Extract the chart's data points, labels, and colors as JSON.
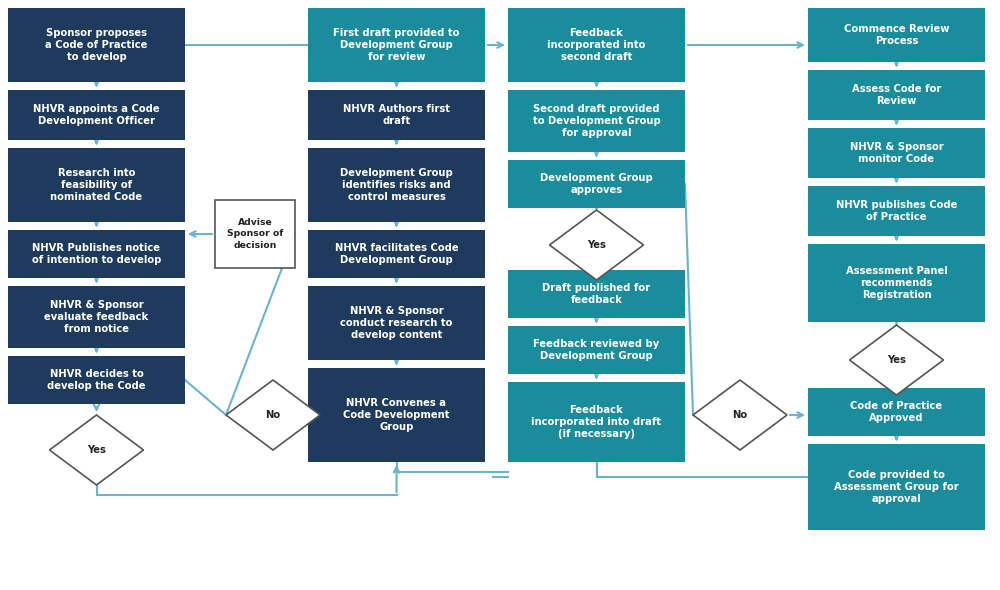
{
  "bg_color": "#ffffff",
  "dark_blue": "#1e3a5c",
  "teal": "#1a8c9c",
  "line_color": "#6ab4cc",
  "text_white": "#ffffff",
  "text_dark": "#222222",
  "font_size": 7.2,
  "col1_boxes": [
    "Sponsor proposes\na Code of Practice\nto develop",
    "NHVR appoints a Code\nDevelopment Officer",
    "Research into\nfeasibility of\nnominated Code",
    "NHVR Publishes notice\nof intention to develop",
    "NHVR & Sponsor\nevaluate feedback\nfrom notice",
    "NHVR decides to\ndevelop the Code"
  ],
  "col2_boxes": [
    "First draft provided to\nDevelopment Group\nfor review",
    "NHVR Authors first\ndraft",
    "Development Group\nidentifies risks and\ncontrol measures",
    "NHVR facilitates Code\nDevelopment Group",
    "NHVR & Sponsor\nconduct research to\ndevelop content",
    "NHVR Convenes a\nCode Development\nGroup"
  ],
  "col3_boxes": [
    "Feedback\nincorporated into\nsecond draft",
    "Second draft provided\nto Development Group\nfor approval",
    "Development Group\napproves",
    "Draft published for\nfeedback",
    "Feedback reviewed by\nDevelopment Group",
    "Feedback\nincorporated into draft\n(if necessary)"
  ],
  "col4_boxes": [
    "Commence Review\nProcess",
    "Assess Code for\nReview",
    "NHVR & Sponsor\nmonitor Code",
    "NHVR publishes Code\nof Practice",
    "Assessment Panel\nrecommends\nRegistration",
    "Code of Practice\nApproved",
    "Code provided to\nAssessment Group for\napproval"
  ]
}
